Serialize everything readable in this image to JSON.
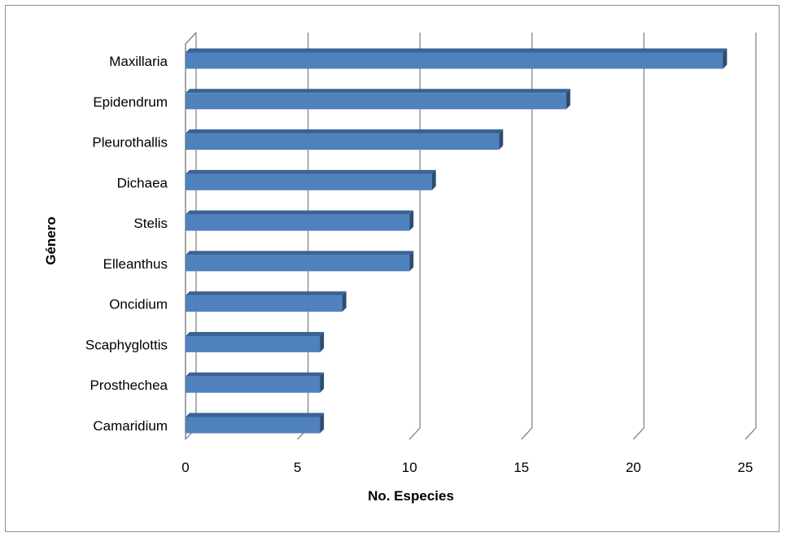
{
  "chart_data": {
    "type": "bar",
    "orientation": "horizontal",
    "style": "3d-clustered-bar",
    "categories": [
      "Maxillaria",
      "Epidendrum",
      "Pleurothallis",
      "Dichaea",
      "Stelis",
      "Elleanthus",
      "Oncidium",
      "Scaphyglottis",
      "Prosthechea",
      "Camaridium"
    ],
    "values": [
      24,
      17,
      14,
      11,
      10,
      10,
      7,
      6,
      6,
      6
    ],
    "xlabel": "No. Especies",
    "ylabel": "Género",
    "xlim": [
      0,
      25
    ],
    "xticks": [
      "0",
      "5",
      "10",
      "15",
      "20",
      "25"
    ],
    "grid": true,
    "bar_color": "#4f81bd",
    "bar_top_color": "#3a6396",
    "bar_side_color": "#2c4d74",
    "gridline_color": "#868686"
  }
}
